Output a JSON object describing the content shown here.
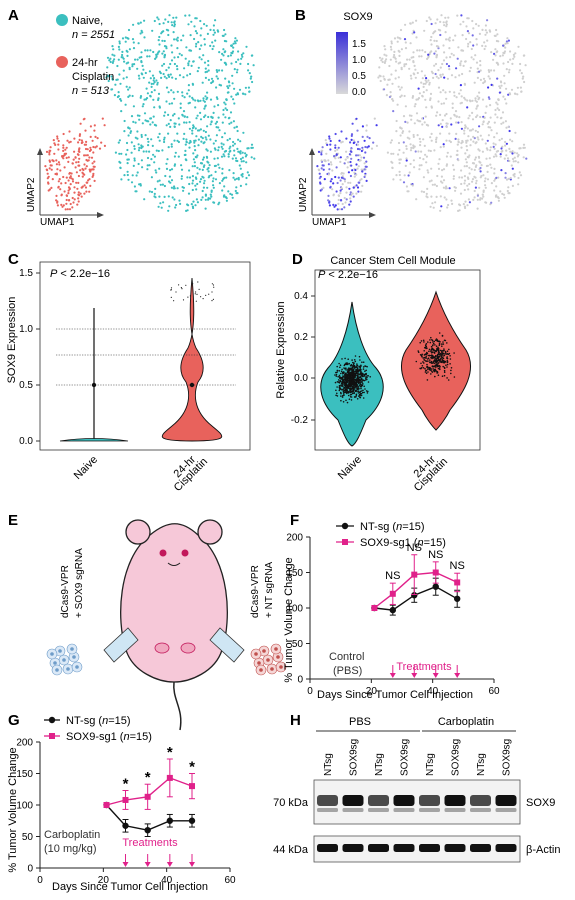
{
  "panels": {
    "A": {
      "letter": "A",
      "legend": [
        {
          "label": "Naive,",
          "n": "n = 2551",
          "color": "#3bbfbf"
        },
        {
          "label": "24-hr",
          "label2": "Cisplatin",
          "n": "n = 513",
          "color": "#e8625c"
        }
      ],
      "xaxis": "UMAP1",
      "yaxis": "UMAP2"
    },
    "B": {
      "letter": "B",
      "title": "SOX9",
      "colorbar_ticks": [
        "1.5",
        "1.0",
        "0.5",
        "0.0"
      ],
      "colorbar_high": "#3a2fd8",
      "colorbar_low": "#d9d9d9",
      "xaxis": "UMAP1",
      "yaxis": "UMAP2"
    },
    "C": {
      "letter": "C",
      "pvalue": "P < 2.2e−16",
      "ylabel": "SOX9 Expression",
      "ticks": [
        "0.0",
        "0.5",
        "1.0",
        "1.5"
      ],
      "groups": [
        "Naive",
        "24-hr Cisplatin"
      ],
      "group2_line1": "24-hr",
      "group2_line2": "Cisplatin"
    },
    "D": {
      "letter": "D",
      "title": "Cancer Stem Cell Module",
      "pvalue": "P < 2.2e−16",
      "ylabel": "Relative Expression",
      "ticks": [
        "-0.2",
        "0.0",
        "0.2",
        "0.4"
      ],
      "groups": [
        "Naive",
        "24-hr Cisplatin"
      ],
      "group2_line1": "24-hr",
      "group2_line2": "Cisplatin"
    },
    "E": {
      "letter": "E",
      "left_label": "dCas9-VPR + SOX9 sgRNA",
      "left_line1": "dCas9-VPR",
      "left_line2": "+ SOX9 sgRNA",
      "right_label": "dCas9-VPR + NT sgRNA",
      "right_line1": "dCas9-VPR",
      "right_line2": "+ NT sgRNA"
    },
    "F": {
      "letter": "F",
      "legend": [
        {
          "label": "NT-sg (n=15)",
          "name": "NT-sg (",
          "n": "n",
          "tail": "=15)"
        },
        {
          "label": "SOX9-sg1 (n=15)",
          "name": "SOX9-sg1 (",
          "n": "n",
          "tail": "=15)"
        }
      ],
      "ylabel": "% Tumor Volume Change",
      "xlabel": "Days Since Tumor Cell Injection",
      "control1": "Control",
      "control2": "(PBS)",
      "treatments": "Treatments",
      "sig": [
        "NS",
        "NS",
        "NS",
        "NS"
      ]
    },
    "G": {
      "letter": "G",
      "legend": [
        {
          "label": "NT-sg (n=15)",
          "name": "NT-sg (",
          "n": "n",
          "tail": "=15)"
        },
        {
          "label": "SOX9-sg1 (n=15)",
          "name": "SOX9-sg1 (",
          "n": "n",
          "tail": "=15)"
        }
      ],
      "ylabel": "% Tumor Volume Change",
      "xlabel": "Days Since Tumor Cell Injection",
      "drug1": "Carboplatin",
      "drug2": "(10 mg/kg)",
      "treatments": "Treatments",
      "sig": [
        "*",
        "*",
        "*",
        "*"
      ]
    },
    "H": {
      "letter": "H",
      "group_labels": [
        "PBS",
        "Carboplatin"
      ],
      "lanes": [
        "NTsg",
        "SOX9sg",
        "NTsg",
        "SOX9sg",
        "NTsg",
        "SOX9sg",
        "NTsg",
        "SOX9sg"
      ],
      "kda_top": "70 kDa",
      "kda_bottom": "44 kDa",
      "band_top": "SOX9",
      "band_bottom": "β-Actin"
    }
  },
  "chart_data": [
    {
      "panel": "F",
      "type": "line",
      "x": [
        21,
        27,
        34,
        41,
        48
      ],
      "xlim": [
        0,
        60
      ],
      "ylim": [
        0,
        200
      ],
      "xticks": [
        0,
        20,
        40,
        60
      ],
      "yticks": [
        0,
        50,
        100,
        150,
        200
      ],
      "treatment_days": [
        27,
        34,
        41,
        48
      ],
      "series": [
        {
          "name": "NT-sg (n=15)",
          "color": "#111111",
          "values": [
            100,
            97,
            118,
            130,
            113
          ],
          "errors": [
            0,
            7,
            10,
            12,
            12
          ]
        },
        {
          "name": "SOX9-sg1 (n=15)",
          "color": "#e0218a",
          "values": [
            100,
            120,
            147,
            150,
            136
          ],
          "errors": [
            0,
            15,
            28,
            15,
            13
          ]
        }
      ]
    },
    {
      "panel": "G",
      "type": "line",
      "x": [
        21,
        27,
        34,
        41,
        48
      ],
      "xlim": [
        0,
        60
      ],
      "ylim": [
        0,
        200
      ],
      "xticks": [
        0,
        20,
        40,
        60
      ],
      "yticks": [
        0,
        50,
        100,
        150,
        200
      ],
      "treatment_days": [
        27,
        34,
        41,
        48
      ],
      "series": [
        {
          "name": "NT-sg (n=15)",
          "color": "#111111",
          "values": [
            100,
            67,
            60,
            75,
            75
          ],
          "errors": [
            0,
            10,
            10,
            10,
            10
          ]
        },
        {
          "name": "SOX9-sg1 (n=15)",
          "color": "#e0218a",
          "values": [
            100,
            108,
            113,
            143,
            130
          ],
          "errors": [
            0,
            15,
            20,
            30,
            20
          ]
        }
      ]
    }
  ]
}
